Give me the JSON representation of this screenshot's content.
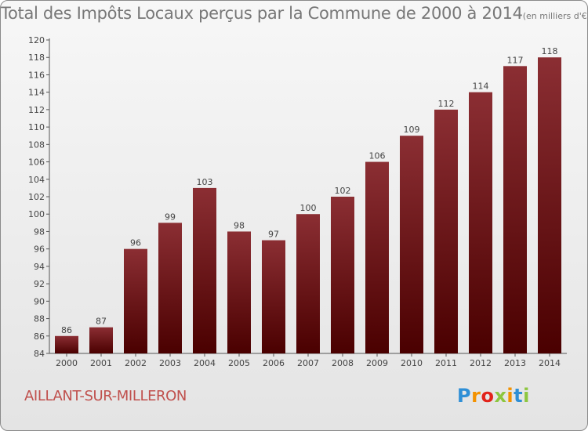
{
  "chart_data": {
    "type": "bar",
    "title": "Total des Impôts Locaux perçus par la Commune de 2000 à 2014",
    "unit_label": "(en milliers d'€)",
    "categories": [
      "2000",
      "2001",
      "2002",
      "2003",
      "2004",
      "2005",
      "2006",
      "2007",
      "2008",
      "2009",
      "2010",
      "2011",
      "2012",
      "2013",
      "2014"
    ],
    "values": [
      86,
      87,
      96,
      99,
      103,
      98,
      97,
      100,
      102,
      106,
      109,
      112,
      114,
      117,
      118
    ],
    "value_labels": [
      "86",
      "87",
      "96",
      "99",
      "103",
      "98",
      "97",
      "100",
      "102",
      "106",
      "109",
      "112",
      "114",
      "117",
      "118"
    ],
    "ylim": [
      84,
      120
    ],
    "yticks": [
      84,
      86,
      88,
      90,
      92,
      94,
      96,
      98,
      100,
      102,
      104,
      106,
      108,
      110,
      112,
      114,
      116,
      118,
      120
    ],
    "xlabel": "",
    "ylabel": "",
    "grid": false,
    "bar_color_top": "#8b2e33",
    "bar_color_bottom": "#4a0000"
  },
  "commune": "AILLANT-SUR-MILLERON",
  "logo": {
    "letters": [
      "P",
      "r",
      "o",
      "x",
      "i",
      "t",
      "i"
    ],
    "colors": [
      "#2e8fd6",
      "#f39200",
      "#e2231a",
      "#8dc63f",
      "#f39200",
      "#2e8fd6",
      "#8dc63f"
    ]
  }
}
